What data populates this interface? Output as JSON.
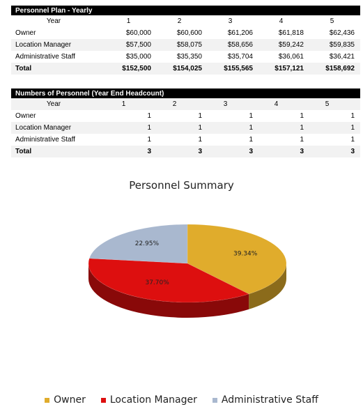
{
  "plan": {
    "title": "Personnel Plan - Yearly",
    "year_label": "Year",
    "years": [
      "1",
      "2",
      "3",
      "4",
      "5"
    ],
    "rows": [
      {
        "label": "Owner",
        "values": [
          "$60,000",
          "$60,600",
          "$61,206",
          "$61,818",
          "$62,436"
        ]
      },
      {
        "label": "Location Manager",
        "values": [
          "$57,500",
          "$58,075",
          "$58,656",
          "$59,242",
          "$59,835"
        ]
      },
      {
        "label": "Administrative Staff",
        "values": [
          "$35,000",
          "$35,350",
          "$35,704",
          "$36,061",
          "$36,421"
        ]
      }
    ],
    "total": {
      "label": "Total",
      "values": [
        "$152,500",
        "$154,025",
        "$155,565",
        "$157,121",
        "$158,692"
      ]
    }
  },
  "headcount": {
    "title": "Numbers of Personnel (Year End Headcount)",
    "year_label": "Year",
    "years": [
      "1",
      "2",
      "3",
      "4",
      "5"
    ],
    "rows": [
      {
        "label": "Owner",
        "values": [
          "1",
          "1",
          "1",
          "1",
          "1"
        ]
      },
      {
        "label": "Location Manager",
        "values": [
          "1",
          "1",
          "1",
          "1",
          "1"
        ]
      },
      {
        "label": "Administrative Staff",
        "values": [
          "1",
          "1",
          "1",
          "1",
          "1"
        ]
      }
    ],
    "total": {
      "label": "Total",
      "values": [
        "3",
        "3",
        "3",
        "3",
        "3"
      ]
    }
  },
  "chart_data": {
    "type": "pie",
    "title": "Personnel Summary",
    "categories": [
      "Owner",
      "Location Manager",
      "Administrative Staff"
    ],
    "values": [
      39.34,
      37.7,
      22.95
    ],
    "labels": [
      "39.34%",
      "37.70%",
      "22.95%"
    ],
    "colors": [
      "#e0ac2c",
      "#dd0f0f",
      "#a9b8cf"
    ],
    "legend_position": "bottom"
  }
}
